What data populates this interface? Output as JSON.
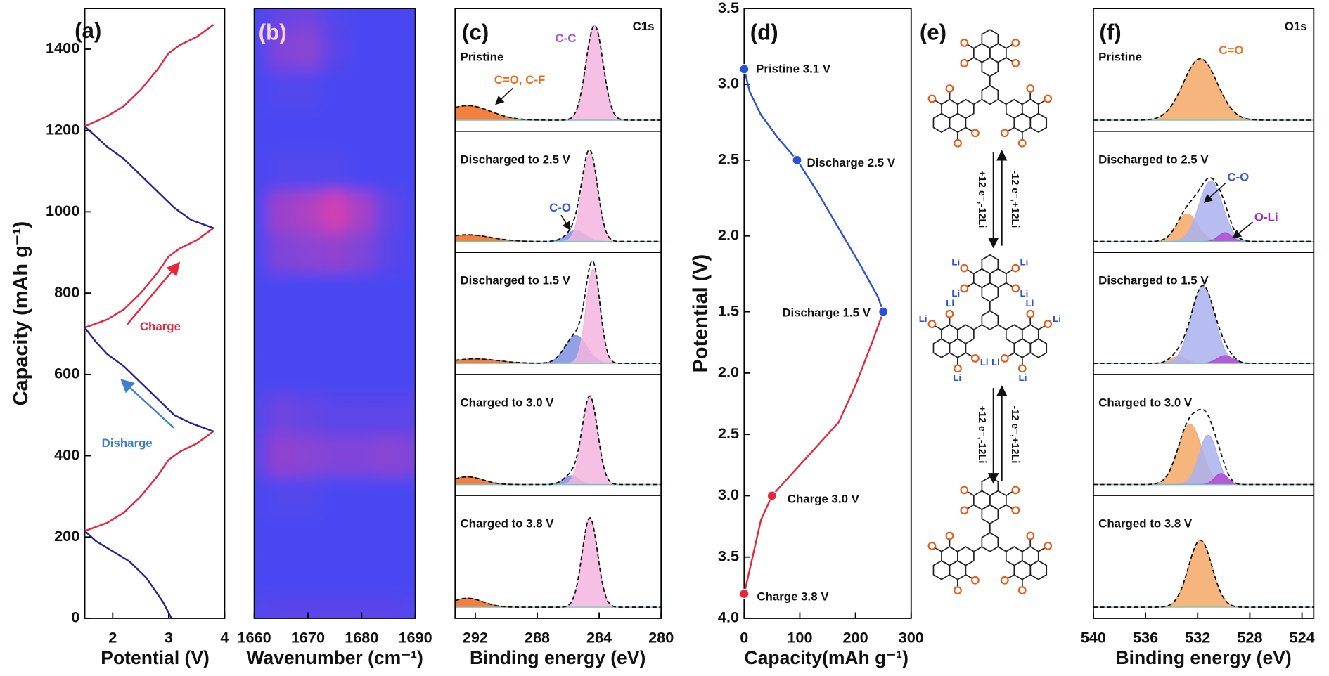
{
  "chart_data": [
    {
      "type": "line",
      "panel": "(a)",
      "xlabel": "Potential (V)",
      "ylabel": "Capacity (mAh g⁻¹)",
      "xlim": [
        1.5,
        4
      ],
      "xticks": [
        2,
        3,
        4
      ],
      "ylim": [
        0,
        1500
      ],
      "yticks": [
        0,
        200,
        400,
        600,
        800,
        1000,
        1200,
        1400
      ],
      "series": [
        {
          "name": "Charge",
          "color": "#e8253a",
          "x": [
            1.5,
            1.9,
            2.2,
            2.5,
            2.8,
            3.0,
            3.2,
            3.5,
            3.8,
            null,
            1.5,
            1.9,
            2.2,
            2.5,
            2.8,
            3.0,
            3.2,
            3.5,
            3.8,
            null,
            1.5,
            1.9,
            2.2,
            2.5,
            2.8,
            3.0,
            3.2,
            3.5,
            3.8
          ],
          "values": [
            215,
            235,
            260,
            300,
            350,
            390,
            410,
            430,
            460,
            null,
            715,
            735,
            760,
            800,
            850,
            890,
            910,
            930,
            960,
            null,
            1210,
            1235,
            1260,
            1300,
            1350,
            1390,
            1410,
            1430,
            1460
          ]
        },
        {
          "name": "Disharge",
          "color": "#23239a",
          "x": [
            3.05,
            2.9,
            2.6,
            2.3,
            2.0,
            1.7,
            1.5,
            null,
            3.8,
            3.4,
            3.1,
            2.8,
            2.5,
            2.2,
            1.9,
            1.7,
            1.5,
            null,
            3.8,
            3.4,
            3.1,
            2.8,
            2.5,
            2.2,
            1.9,
            1.7,
            1.5
          ],
          "values": [
            0,
            40,
            100,
            140,
            165,
            190,
            215,
            null,
            460,
            480,
            500,
            540,
            580,
            620,
            650,
            680,
            715,
            null,
            960,
            980,
            1010,
            1050,
            1090,
            1130,
            1160,
            1185,
            1210
          ]
        }
      ]
    },
    {
      "type": "heatmap",
      "panel": "(b)",
      "xlabel": "Wavenumber (cm⁻¹)",
      "xlim": [
        1660,
        1690
      ],
      "xticks": [
        1660,
        1670,
        1680,
        1690
      ],
      "ylim": [
        0,
        1500
      ],
      "x": [
        1660,
        1665,
        1670,
        1675,
        1680,
        1685,
        1690
      ],
      "y": [
        0,
        100,
        200,
        300,
        400,
        500,
        600,
        700,
        800,
        900,
        1000,
        1100,
        1200,
        1300,
        1400,
        1500
      ],
      "z": [
        [
          0.05,
          0.1,
          0.1,
          0.1,
          0.1,
          0.1,
          0.05
        ],
        [
          0,
          0,
          0,
          0,
          0,
          0,
          0
        ],
        [
          0,
          0,
          0,
          0,
          0,
          0,
          0
        ],
        [
          0,
          0.05,
          0.05,
          0,
          0,
          0,
          0
        ],
        [
          0.1,
          0.4,
          0.35,
          0.3,
          0.3,
          0.35,
          0.3
        ],
        [
          0.05,
          0.2,
          0.15,
          0.1,
          0.1,
          0.1,
          0.1
        ],
        [
          0,
          0,
          0,
          0,
          0,
          0,
          0
        ],
        [
          0,
          0,
          0,
          0,
          0,
          0,
          0
        ],
        [
          0,
          0,
          0,
          0,
          0,
          0,
          0
        ],
        [
          0,
          0.3,
          0.35,
          0.4,
          0.3,
          0.1,
          0
        ],
        [
          0,
          0.45,
          0.55,
          0.75,
          0.5,
          0.15,
          0
        ],
        [
          0,
          0.05,
          0.05,
          0.05,
          0,
          0,
          0
        ],
        [
          0,
          0,
          0,
          0,
          0,
          0,
          0
        ],
        [
          0,
          0.05,
          0.05,
          0,
          0,
          0,
          0
        ],
        [
          0,
          0.3,
          0.35,
          0.1,
          0,
          0,
          0
        ],
        [
          0,
          0.15,
          0.2,
          0.05,
          0,
          0,
          0
        ]
      ],
      "colors": [
        "#4a46f2",
        "#ff3f9c"
      ]
    },
    {
      "type": "xps",
      "panel": "(c)",
      "region": "C1s",
      "xlabel": "Binding energy (eV)",
      "xlim": [
        293.3,
        280
      ],
      "xticks": [
        292,
        288,
        284,
        280
      ],
      "ylim": [
        -0.1,
        1
      ],
      "spectra": [
        {
          "label": "Pristine",
          "peaks": [
            {
              "center": 292.5,
              "height": 0.13,
              "width": 1.5,
              "color": "#f26a1f"
            },
            {
              "center": 284.3,
              "height": 0.85,
              "width": 0.55,
              "color": "#f3b5de"
            }
          ]
        },
        {
          "label": "Discharged to 2.5 V",
          "peaks": [
            {
              "center": 292.5,
              "height": 0.06,
              "width": 1.5,
              "color": "#f26a1f"
            },
            {
              "center": 285.5,
              "height": 0.1,
              "width": 0.6,
              "color": "#7e90e0"
            },
            {
              "center": 284.6,
              "height": 0.8,
              "width": 0.5,
              "color": "#f3b5de"
            }
          ]
        },
        {
          "label": "Discharged to 1.5 V",
          "peaks": [
            {
              "center": 292,
              "height": 0.04,
              "width": 1.5,
              "color": "#f26a1f"
            },
            {
              "center": 285.5,
              "height": 0.25,
              "width": 0.7,
              "color": "#7e90e0"
            },
            {
              "center": 284.4,
              "height": 0.85,
              "width": 0.45,
              "color": "#f3b5de"
            }
          ]
        },
        {
          "label": "Charged to 3.0 V",
          "peaks": [
            {
              "center": 292.5,
              "height": 0.07,
              "width": 1,
              "color": "#f26a1f"
            },
            {
              "center": 285.8,
              "height": 0.08,
              "width": 0.5,
              "color": "#7e90e0"
            },
            {
              "center": 284.6,
              "height": 0.8,
              "width": 0.5,
              "color": "#f3b5de"
            }
          ]
        },
        {
          "label": "Charged to 3.8 V",
          "peaks": [
            {
              "center": 292.5,
              "height": 0.08,
              "width": 1,
              "color": "#f26a1f"
            },
            {
              "center": 284.6,
              "height": 0.8,
              "width": 0.5,
              "color": "#f3b5de"
            }
          ]
        }
      ],
      "annotations": [
        {
          "text": "C-C",
          "color": "#b04fc8"
        },
        {
          "text": "C=O, C-F",
          "color": "#f26a1f"
        },
        {
          "text": "C-O",
          "color": "#3a5ad0"
        }
      ]
    },
    {
      "type": "line",
      "panel": "(d)",
      "xlabel": "Capacity(mAh g⁻¹)",
      "ylabel": "Potential (V)",
      "xlim": [
        0,
        300
      ],
      "xticks": [
        0,
        100,
        200,
        300
      ],
      "ylim": [
        1.5,
        3.5
      ],
      "yticks": [
        1.5,
        {
          "value": 2,
          "label": "2.0"
        },
        2.5,
        {
          "value": 3,
          "label": "3.0"
        },
        3.5
      ],
      "y2lim": [
        4.0,
        1.5
      ],
      "y2ticks": [
        {
          "value": 2,
          "label": "2.0"
        },
        2.5,
        {
          "value": 3,
          "label": "3.0"
        },
        3.5,
        {
          "value": 4,
          "label": "4.0"
        }
      ],
      "series": [
        {
          "color": "#2a4fd8",
          "axis": "y",
          "x": [
            0,
            10,
            30,
            60,
            95,
            130,
            170,
            210,
            240,
            250
          ],
          "values": [
            3.1,
            2.95,
            2.8,
            2.65,
            2.5,
            2.3,
            2.05,
            1.8,
            1.6,
            1.5
          ]
        },
        {
          "color": "#e8253a",
          "axis": "y2",
          "x": [
            250,
            230,
            200,
            170,
            130,
            90,
            50,
            30,
            15,
            0
          ],
          "values": [
            1.5,
            1.75,
            2.1,
            2.4,
            2.6,
            2.8,
            3.0,
            3.2,
            3.5,
            3.8
          ]
        }
      ],
      "points": [
        {
          "label": "Pristine  3.1 V",
          "x": 0,
          "y": 3.1,
          "axis": "y",
          "color": "#2a4fd8"
        },
        {
          "label": "Discharge 2.5 V",
          "x": 95,
          "y": 2.5,
          "axis": "y",
          "color": "#2a4fd8"
        },
        {
          "label": "Discharge 1.5 V",
          "x": 250,
          "y": 1.5,
          "axis": "y",
          "color": "#2a4fd8"
        },
        {
          "label": "Charge 3.0 V",
          "x": 50,
          "y": 3.0,
          "axis": "y2",
          "color": "#e8253a"
        },
        {
          "label": "Charge 3.8 V",
          "x": 0,
          "y": 3.8,
          "axis": "y2",
          "color": "#e8253a"
        }
      ]
    },
    {
      "type": "xps",
      "panel": "(f)",
      "region": "O1s",
      "xlabel": "Binding energy (eV)",
      "xlim": [
        540,
        523.1
      ],
      "xticks": [
        540,
        536,
        532,
        528,
        524
      ],
      "ylim": [
        -0.1,
        1
      ],
      "spectra": [
        {
          "label": "Pristine",
          "peaks": [
            {
              "center": 531.8,
              "height": 0.55,
              "width": 1.3,
              "color": "#f5a866"
            }
          ]
        },
        {
          "label": "Discharged to 2.5 V",
          "peaks": [
            {
              "center": 532.8,
              "height": 0.25,
              "width": 0.8,
              "color": "#f5a866"
            },
            {
              "center": 531.0,
              "height": 0.55,
              "width": 0.9,
              "color": "#aab2ee"
            },
            {
              "center": 529.9,
              "height": 0.08,
              "width": 0.5,
              "color": "#b34ad4"
            }
          ]
        },
        {
          "label": "Discharged to 1.5 V",
          "peaks": [
            {
              "center": 533.5,
              "height": 0.06,
              "width": 0.6,
              "color": "#f5a866"
            },
            {
              "center": 531.6,
              "height": 0.7,
              "width": 0.9,
              "color": "#aab2ee"
            },
            {
              "center": 529.9,
              "height": 0.07,
              "width": 0.6,
              "color": "#b34ad4"
            }
          ]
        },
        {
          "label": "Charged to 3.0 V",
          "peaks": [
            {
              "center": 532.6,
              "height": 0.55,
              "width": 0.9,
              "color": "#f5a866"
            },
            {
              "center": 531.2,
              "height": 0.45,
              "width": 0.7,
              "color": "#aab2ee"
            },
            {
              "center": 530.2,
              "height": 0.1,
              "width": 0.5,
              "color": "#b34ad4"
            }
          ]
        },
        {
          "label": "Charged to 3.8 V",
          "peaks": [
            {
              "center": 531.8,
              "height": 0.6,
              "width": 0.9,
              "color": "#f5a866"
            }
          ]
        }
      ],
      "annotations": [
        {
          "text": "C=O",
          "color": "#f07020"
        },
        {
          "text": "C-O",
          "color": "#3a5ad0"
        },
        {
          "text": "O-Li",
          "color": "#9b30c8"
        }
      ]
    }
  ],
  "scheme": {
    "panel": "(e)",
    "reactions": [
      "+12 e⁻,-12Li",
      "-12 e⁻,+12Li"
    ],
    "lithium": "Li"
  }
}
